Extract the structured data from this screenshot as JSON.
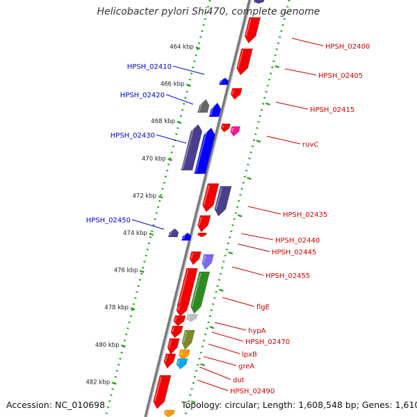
{
  "title": "Helicobacter pylori Shi470, complete genome",
  "footer": {
    "accession": "Accession: NC_010698",
    "summary": "Topology: circular; Length: 1,608,548 bp; Genes: 1,610"
  },
  "colors": {
    "backbone": "#7a7a7a",
    "ruler": "#33a02c",
    "label_left": "#0000cc",
    "label_right": "#cc0000",
    "red": "#f40000",
    "blue": "#0000ff",
    "navy": "#4a3f8c",
    "grey": "#666666",
    "magenta": "#ff1493",
    "violet": "#7b68ee",
    "green": "#2e8b22",
    "lightgrey": "#c0c0c0",
    "olive": "#7a8a2a",
    "orange": "#ff9900",
    "cyan": "#00aaee"
  },
  "ruler_ticks": [
    {
      "label": "464 kbp"
    },
    {
      "label": "466 kbp"
    },
    {
      "label": "468 kbp"
    },
    {
      "label": "470 kbp"
    },
    {
      "label": "472 kbp"
    },
    {
      "label": "474 kbp"
    },
    {
      "label": "476 kbp"
    },
    {
      "label": "478 kbp"
    },
    {
      "label": "480 kbp"
    },
    {
      "label": "482 kbp"
    }
  ],
  "genes_left": [
    {
      "name": "HPSH_02410"
    },
    {
      "name": "HPSH_02420"
    },
    {
      "name": "HPSH_02430"
    },
    {
      "name": "HPSH_02450"
    }
  ],
  "genes_right": [
    {
      "name": "HPSH_02400"
    },
    {
      "name": "HPSH_02405"
    },
    {
      "name": "HPSH_02415"
    },
    {
      "name": "ruvC"
    },
    {
      "name": "HPSH_02435"
    },
    {
      "name": "HPSH_02440"
    },
    {
      "name": "HPSH_02445"
    },
    {
      "name": "HPSH_02455"
    },
    {
      "name": "flgE"
    },
    {
      "name": "hypA"
    },
    {
      "name": "HPSH_02470"
    },
    {
      "name": "lpxB"
    },
    {
      "name": "greA"
    },
    {
      "name": "dut"
    },
    {
      "name": "HPSH_02490"
    }
  ]
}
